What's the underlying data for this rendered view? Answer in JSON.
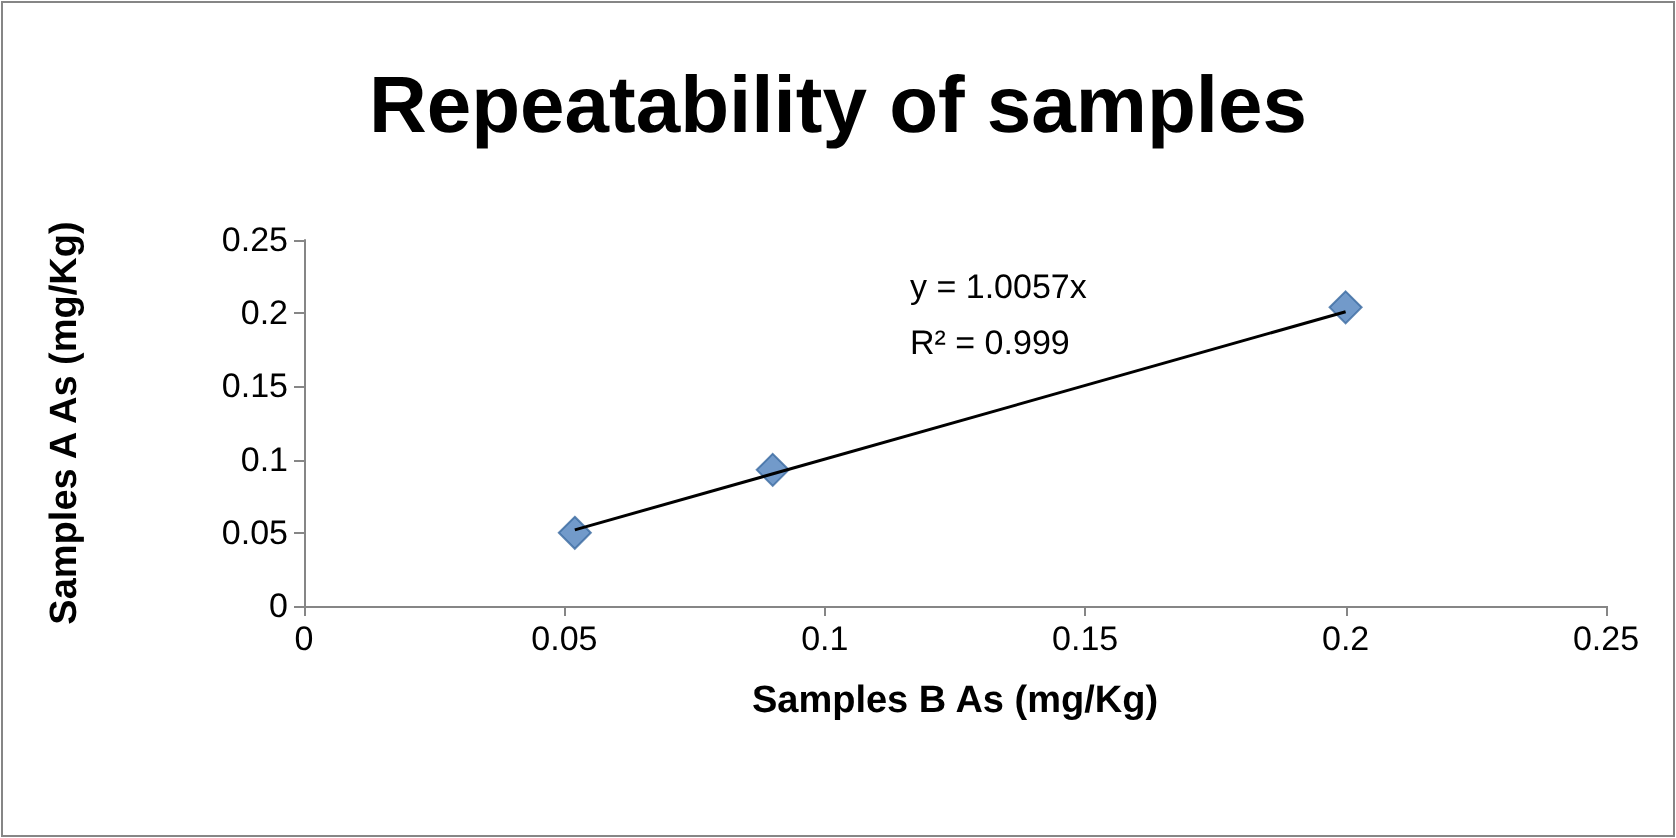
{
  "chart_data": {
    "type": "scatter",
    "title": "Repeatability of samples",
    "xlabel": "Samples B As (mg/Kg)",
    "ylabel": "Samples A As (mg/Kg)",
    "annotations": [
      "y = 1.0057x",
      "R² = 0.999"
    ],
    "series": [
      {
        "color": "#4f81bd",
        "x": [
          0.052,
          0.09,
          0.2
        ],
        "values": [
          0.05,
          0.093,
          0.204
        ],
        "marker": "diamond"
      },
      {
        "type": "line",
        "color": "#000000",
        "x": [
          0.052,
          0.2
        ],
        "values": [
          0.052,
          0.201
        ],
        "marker": "none",
        "line_style": "solid"
      }
    ],
    "xlim": [
      0,
      0.25
    ],
    "xticks": [
      0,
      0.05,
      0.1,
      0.15,
      0.2,
      0.25
    ],
    "ylim": [
      0,
      0.25
    ],
    "yticks": [
      0,
      0.05,
      0.1,
      0.15,
      0.2,
      0.25
    ],
    "grid": false
  }
}
